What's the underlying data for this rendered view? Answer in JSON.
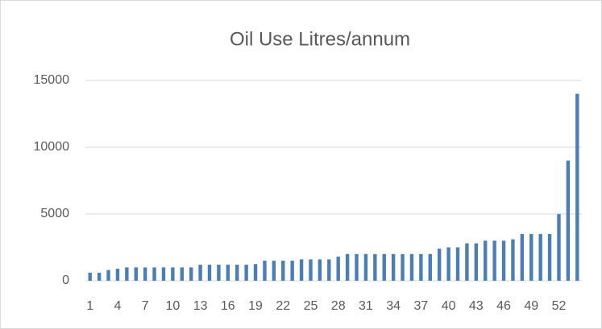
{
  "chart_data": {
    "type": "bar",
    "title": "Oil Use Litres/annum",
    "categories": [
      1,
      null,
      null,
      4,
      null,
      null,
      7,
      null,
      null,
      10,
      null,
      null,
      13,
      null,
      null,
      16,
      null,
      null,
      19,
      null,
      null,
      22,
      null,
      null,
      25,
      null,
      null,
      28,
      null,
      null,
      31,
      null,
      null,
      34,
      null,
      null,
      37,
      null,
      null,
      40,
      null,
      null,
      43,
      null,
      null,
      46,
      null,
      null,
      49,
      null,
      null,
      52,
      null,
      null
    ],
    "values": [
      600,
      600,
      800,
      900,
      1000,
      1000,
      1000,
      1000,
      1000,
      1000,
      1000,
      1000,
      1200,
      1200,
      1200,
      1200,
      1200,
      1200,
      1250,
      1500,
      1500,
      1500,
      1500,
      1600,
      1600,
      1600,
      1600,
      1800,
      2000,
      2000,
      2000,
      2000,
      2000,
      2000,
      2000,
      2000,
      2000,
      2000,
      2400,
      2500,
      2500,
      2800,
      2800,
      3000,
      3000,
      3000,
      3100,
      3500,
      3500,
      3500,
      3500,
      5000,
      9000,
      14000
    ],
    "color": "#4a7ebb",
    "ylim": [
      0,
      15000
    ],
    "yticks": [
      0,
      5000,
      10000,
      15000
    ],
    "grid": true
  }
}
